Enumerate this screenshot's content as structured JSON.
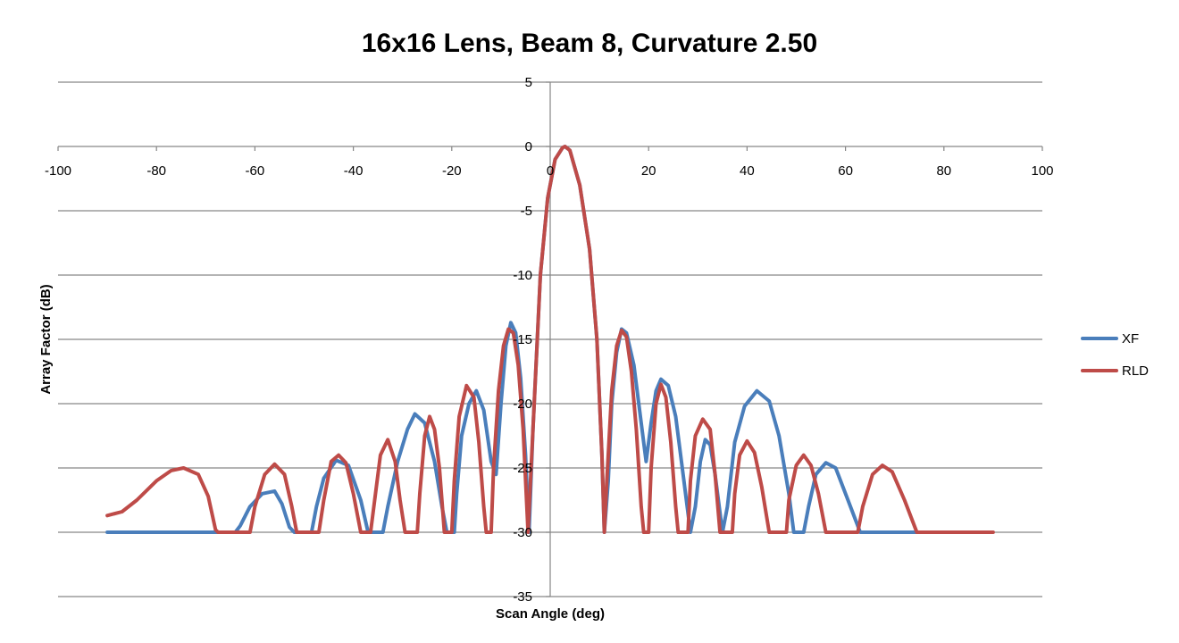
{
  "chart_data": {
    "type": "line",
    "title": "16x16 Lens, Beam 8, Curvature 2.50",
    "xlabel": "Scan Angle (deg)",
    "ylabel": "Array Factor (dB)",
    "xlim": [
      -100,
      100
    ],
    "ylim": [
      -35,
      5
    ],
    "x_ticks": [
      -100,
      -80,
      -60,
      -40,
      -20,
      0,
      20,
      40,
      60,
      80,
      100
    ],
    "y_ticks": [
      5,
      0,
      -5,
      -10,
      -15,
      -20,
      -25,
      -30,
      -35
    ],
    "grid": "horizontal",
    "legend_position": "right",
    "series": [
      {
        "name": "XF",
        "color": "#4a7ebb",
        "points": [
          [
            -90,
            -30
          ],
          [
            -64,
            -30
          ],
          [
            -63,
            -29.5
          ],
          [
            -61,
            -28
          ],
          [
            -58.5,
            -27
          ],
          [
            -56,
            -26.8
          ],
          [
            -54.5,
            -27.8
          ],
          [
            -53,
            -29.6
          ],
          [
            -52,
            -30
          ],
          [
            -48.5,
            -30
          ],
          [
            -47.5,
            -28
          ],
          [
            -46,
            -25.8
          ],
          [
            -43.5,
            -24.4
          ],
          [
            -41,
            -24.8
          ],
          [
            -38.5,
            -27.5
          ],
          [
            -37,
            -30
          ],
          [
            -34,
            -30
          ],
          [
            -33,
            -28
          ],
          [
            -31,
            -24.5
          ],
          [
            -29,
            -22
          ],
          [
            -27.5,
            -20.8
          ],
          [
            -25.5,
            -21.5
          ],
          [
            -23.5,
            -24.5
          ],
          [
            -22,
            -28
          ],
          [
            -21,
            -30
          ],
          [
            -19.5,
            -30
          ],
          [
            -19,
            -27
          ],
          [
            -18,
            -22.5
          ],
          [
            -16.5,
            -20
          ],
          [
            -15,
            -19
          ],
          [
            -13.5,
            -20.5
          ],
          [
            -12,
            -24.5
          ],
          [
            -11,
            -25.5
          ],
          [
            -10,
            -20
          ],
          [
            -9,
            -15.5
          ],
          [
            -8,
            -13.7
          ],
          [
            -7,
            -14.5
          ],
          [
            -6,
            -18
          ],
          [
            -5,
            -24
          ],
          [
            -4.3,
            -30
          ],
          [
            -3.5,
            -22
          ],
          [
            -2,
            -10
          ],
          [
            -0.5,
            -4
          ],
          [
            1,
            -1
          ],
          [
            2.5,
            -0.1
          ],
          [
            3,
            0
          ],
          [
            4,
            -0.3
          ],
          [
            6,
            -3
          ],
          [
            8,
            -8
          ],
          [
            9.5,
            -15
          ],
          [
            10.5,
            -24
          ],
          [
            11,
            -30
          ],
          [
            11.8,
            -26
          ],
          [
            12.5,
            -20
          ],
          [
            13.5,
            -16
          ],
          [
            14.5,
            -14.2
          ],
          [
            15.5,
            -14.5
          ],
          [
            17,
            -17
          ],
          [
            18.5,
            -21.5
          ],
          [
            19.5,
            -24.5
          ],
          [
            20.5,
            -21.5
          ],
          [
            21.5,
            -19
          ],
          [
            22.5,
            -18.1
          ],
          [
            24,
            -18.6
          ],
          [
            25.5,
            -21
          ],
          [
            27,
            -25.5
          ],
          [
            28.5,
            -30
          ],
          [
            29.5,
            -28
          ],
          [
            30.5,
            -24.5
          ],
          [
            31.5,
            -22.8
          ],
          [
            32.5,
            -23.2
          ],
          [
            33.5,
            -25.5
          ],
          [
            35,
            -30
          ],
          [
            36,
            -28
          ],
          [
            37.5,
            -23
          ],
          [
            39.5,
            -20.2
          ],
          [
            42,
            -19
          ],
          [
            44.5,
            -19.8
          ],
          [
            46.5,
            -22.5
          ],
          [
            48.5,
            -27
          ],
          [
            49.5,
            -30
          ],
          [
            51.5,
            -30
          ],
          [
            52.5,
            -28
          ],
          [
            54,
            -25.5
          ],
          [
            56,
            -24.6
          ],
          [
            58,
            -25
          ],
          [
            60.5,
            -27.5
          ],
          [
            63,
            -30
          ],
          [
            75,
            -30
          ]
        ]
      },
      {
        "name": "RLD",
        "color": "#be4b48",
        "points": [
          [
            -90,
            -28.7
          ],
          [
            -87,
            -28.4
          ],
          [
            -84,
            -27.5
          ],
          [
            -80,
            -26
          ],
          [
            -77,
            -25.2
          ],
          [
            -74.5,
            -25
          ],
          [
            -71.5,
            -25.5
          ],
          [
            -69.5,
            -27.2
          ],
          [
            -68,
            -29.8
          ],
          [
            -67.5,
            -30
          ],
          [
            -61,
            -30
          ],
          [
            -60,
            -28
          ],
          [
            -58,
            -25.5
          ],
          [
            -56,
            -24.7
          ],
          [
            -54,
            -25.5
          ],
          [
            -52.5,
            -28
          ],
          [
            -51.5,
            -30
          ],
          [
            -47,
            -30
          ],
          [
            -46,
            -27.5
          ],
          [
            -44.5,
            -24.5
          ],
          [
            -43,
            -24
          ],
          [
            -41.5,
            -24.6
          ],
          [
            -40,
            -27
          ],
          [
            -38.5,
            -30
          ],
          [
            -36.5,
            -30
          ],
          [
            -35.5,
            -27
          ],
          [
            -34.5,
            -24
          ],
          [
            -33,
            -22.8
          ],
          [
            -31.5,
            -24.5
          ],
          [
            -30.5,
            -27.5
          ],
          [
            -29.5,
            -30
          ],
          [
            -27,
            -30
          ],
          [
            -26.5,
            -27
          ],
          [
            -25.5,
            -22.5
          ],
          [
            -24.5,
            -21
          ],
          [
            -23.5,
            -22
          ],
          [
            -22.5,
            -25
          ],
          [
            -21.5,
            -30
          ],
          [
            -20,
            -30
          ],
          [
            -19.5,
            -26
          ],
          [
            -18.5,
            -21
          ],
          [
            -17,
            -18.6
          ],
          [
            -15.5,
            -19.5
          ],
          [
            -14.5,
            -23
          ],
          [
            -13.5,
            -28
          ],
          [
            -13,
            -30
          ],
          [
            -12,
            -30
          ],
          [
            -11.5,
            -25
          ],
          [
            -10.5,
            -19
          ],
          [
            -9.5,
            -15.5
          ],
          [
            -8.5,
            -14.2
          ],
          [
            -7.5,
            -14.5
          ],
          [
            -6.5,
            -17
          ],
          [
            -5.5,
            -22
          ],
          [
            -4.5,
            -30
          ],
          [
            -3.5,
            -22
          ],
          [
            -2,
            -10
          ],
          [
            -0.5,
            -4
          ],
          [
            1,
            -1
          ],
          [
            2.5,
            -0.1
          ],
          [
            3,
            0
          ],
          [
            4,
            -0.3
          ],
          [
            6,
            -3
          ],
          [
            8,
            -8
          ],
          [
            9.5,
            -15
          ],
          [
            10.5,
            -24
          ],
          [
            11,
            -30
          ],
          [
            11.5,
            -26
          ],
          [
            12.5,
            -19
          ],
          [
            13.5,
            -15.5
          ],
          [
            14.5,
            -14.3
          ],
          [
            15.5,
            -14.8
          ],
          [
            16.5,
            -17.5
          ],
          [
            17.5,
            -22
          ],
          [
            18.5,
            -28
          ],
          [
            19,
            -30
          ],
          [
            20,
            -30
          ],
          [
            20.5,
            -25
          ],
          [
            21.5,
            -20
          ],
          [
            22.5,
            -18.5
          ],
          [
            23.5,
            -19.5
          ],
          [
            24.5,
            -23
          ],
          [
            25.5,
            -28
          ],
          [
            26,
            -30
          ],
          [
            28,
            -30
          ],
          [
            28.5,
            -26
          ],
          [
            29.5,
            -22.5
          ],
          [
            31,
            -21.2
          ],
          [
            32.5,
            -22
          ],
          [
            33.5,
            -25.5
          ],
          [
            34.5,
            -30
          ],
          [
            37,
            -30
          ],
          [
            37.5,
            -27
          ],
          [
            38.5,
            -24
          ],
          [
            40,
            -22.9
          ],
          [
            41.5,
            -23.8
          ],
          [
            43,
            -26.5
          ],
          [
            44.5,
            -30
          ],
          [
            48,
            -30
          ],
          [
            48.5,
            -27.5
          ],
          [
            50,
            -24.8
          ],
          [
            51.5,
            -24
          ],
          [
            53,
            -24.8
          ],
          [
            54.5,
            -27
          ],
          [
            56,
            -30
          ],
          [
            62.5,
            -30
          ],
          [
            63.5,
            -28
          ],
          [
            65.5,
            -25.5
          ],
          [
            67.5,
            -24.8
          ],
          [
            69.5,
            -25.3
          ],
          [
            72,
            -27.5
          ],
          [
            74.5,
            -30
          ],
          [
            90,
            -30
          ]
        ]
      }
    ]
  }
}
